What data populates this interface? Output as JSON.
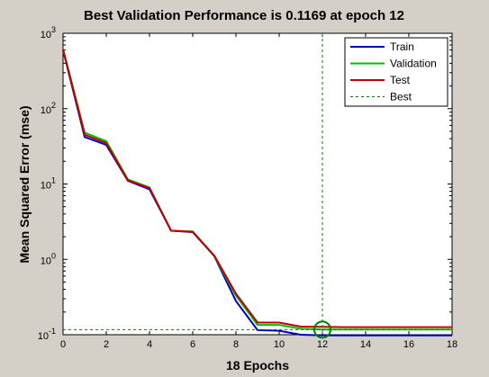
{
  "chart_data": {
    "type": "line",
    "title": "Best Validation Performance is 0.1169 at epoch 12",
    "xlabel": "18 Epochs",
    "ylabel": "Mean Squared Error  (mse)",
    "xlim": [
      0,
      18
    ],
    "ylim_log10": [
      -1,
      3
    ],
    "yscale": "log",
    "x_ticks": [
      "0",
      "2",
      "4",
      "6",
      "8",
      "10",
      "12",
      "14",
      "16",
      "18"
    ],
    "y_ticks": [
      {
        "base": "10",
        "exp": "-1"
      },
      {
        "base": "10",
        "exp": "0"
      },
      {
        "base": "10",
        "exp": "1"
      },
      {
        "base": "10",
        "exp": "2"
      },
      {
        "base": "10",
        "exp": "3"
      }
    ],
    "grid": false,
    "legend_position": "top-right",
    "x": [
      0,
      1,
      2,
      3,
      4,
      5,
      6,
      7,
      8,
      9,
      10,
      11,
      12,
      13,
      14,
      15,
      16,
      17,
      18
    ],
    "series": [
      {
        "name": "Train",
        "color": "#0000c0",
        "values": [
          600,
          42,
          33,
          11,
          8.5,
          2.4,
          2.3,
          1.1,
          0.28,
          0.115,
          0.113,
          0.1,
          0.098,
          0.098,
          0.098,
          0.098,
          0.098,
          0.098,
          0.098
        ]
      },
      {
        "name": "Validation",
        "color": "#00c000",
        "values": [
          620,
          48,
          37,
          11.5,
          9,
          2.4,
          2.35,
          1.1,
          0.33,
          0.135,
          0.135,
          0.12,
          0.1169,
          0.117,
          0.117,
          0.117,
          0.117,
          0.117,
          0.117
        ]
      },
      {
        "name": "Test",
        "color": "#c00000",
        "values": [
          610,
          45,
          35,
          11.2,
          8.8,
          2.4,
          2.32,
          1.12,
          0.35,
          0.145,
          0.145,
          0.128,
          0.127,
          0.126,
          0.126,
          0.126,
          0.126,
          0.126,
          0.126
        ]
      }
    ],
    "best": {
      "name": "Best",
      "epoch": 12,
      "value": 0.1169,
      "color": "#008000"
    }
  },
  "colors": {
    "figure_background": "#d4d0c8",
    "plot_background": "#ffffff",
    "axis": "#000000"
  }
}
